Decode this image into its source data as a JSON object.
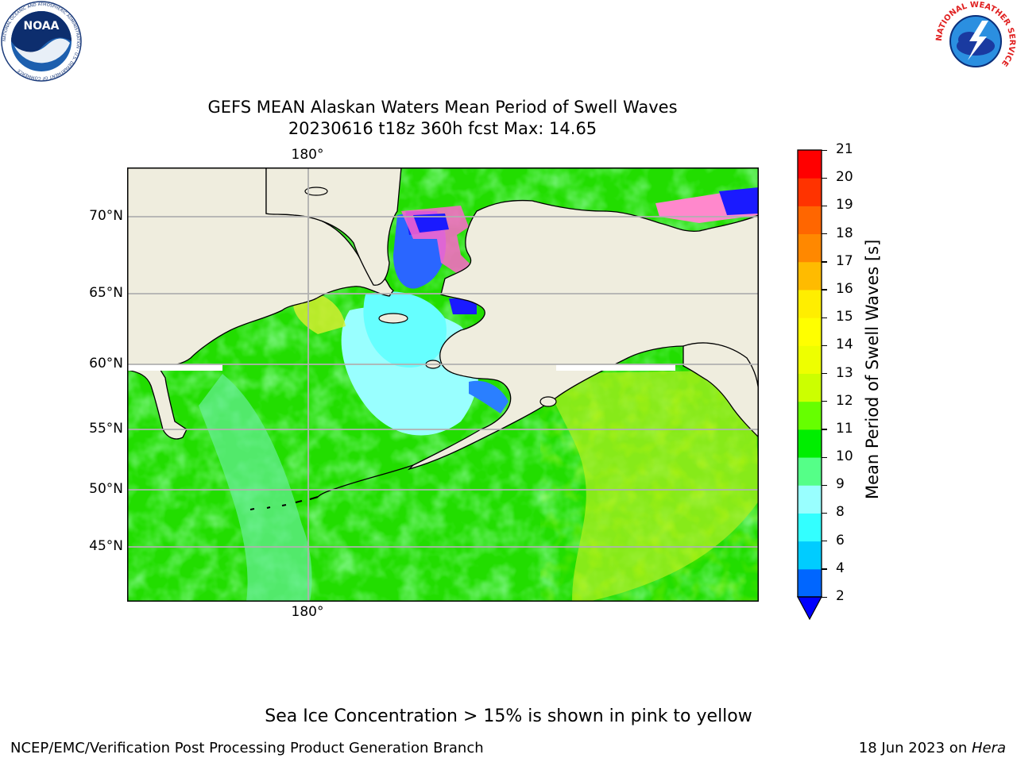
{
  "title": {
    "line1": "GEFS MEAN Alaskan Waters Mean Period of Swell Waves",
    "line2": "20230616 t18z 360h fcst   Max: 14.65"
  },
  "map": {
    "lat_labels": [
      "70°N",
      "65°N",
      "60°N",
      "55°N",
      "50°N",
      "45°N"
    ],
    "lon_label_top": "180°",
    "lon_label_bottom": "180°",
    "land_color": "#efedde",
    "gridlines": true
  },
  "colorbar": {
    "label": "Mean Period of Swell Waves [s]",
    "ticks": [
      "2",
      "4",
      "6",
      "8",
      "9",
      "10",
      "11",
      "12",
      "13",
      "14",
      "15",
      "16",
      "17",
      "18",
      "19",
      "20",
      "21"
    ],
    "colors": [
      "#0066ff",
      "#00ccff",
      "#33ffff",
      "#99ffff",
      "#55ff88",
      "#00ee00",
      "#66ff00",
      "#ccff00",
      "#eeff00",
      "#ffff00",
      "#ffee00",
      "#ffbb00",
      "#ff8800",
      "#ff6600",
      "#ff3300",
      "#ff0000"
    ],
    "under_color": "#0000ff"
  },
  "note": "Sea Ice Concentration > 15% is shown in pink to yellow",
  "footer": {
    "left": "NCEP/EMC/Verification Post Processing Product Generation Branch",
    "right_date": "18 Jun 2023 on ",
    "right_host": "Hera"
  },
  "logos": {
    "noaa_text": "NOAA",
    "noaa_ring": "NATIONAL OCEANIC AND ATMOSPHERIC ADMINISTRATION · U.S. DEPARTMENT OF COMMERCE",
    "nws_ring": "NATIONAL WEATHER SERVICE"
  }
}
